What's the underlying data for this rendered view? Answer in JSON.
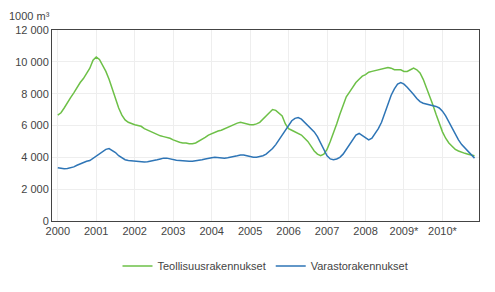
{
  "chart_data": {
    "type": "line",
    "ylabel": "1000 m³",
    "x": [
      2000.0,
      2000.0833333333333,
      2000.1666666666667,
      2000.25,
      2000.3333333333333,
      2000.4166666666667,
      2000.5,
      2000.5833333333333,
      2000.6666666666667,
      2000.75,
      2000.8333333333333,
      2000.9166666666667,
      2001.0,
      2001.0833333333333,
      2001.1666666666667,
      2001.25,
      2001.3333333333333,
      2001.4166666666667,
      2001.5,
      2001.5833333333333,
      2001.6666666666667,
      2001.75,
      2001.8333333333333,
      2001.9166666666667,
      2002.0,
      2002.0833333333333,
      2002.1666666666667,
      2002.25,
      2002.3333333333333,
      2002.4166666666667,
      2002.5,
      2002.5833333333333,
      2002.6666666666667,
      2002.75,
      2002.8333333333333,
      2002.9166666666667,
      2003.0,
      2003.0833333333333,
      2003.1666666666667,
      2003.25,
      2003.3333333333333,
      2003.4166666666667,
      2003.5,
      2003.5833333333333,
      2003.6666666666667,
      2003.75,
      2003.8333333333333,
      2003.9166666666667,
      2004.0,
      2004.0833333333333,
      2004.1666666666667,
      2004.25,
      2004.3333333333333,
      2004.4166666666667,
      2004.5,
      2004.5833333333333,
      2004.6666666666667,
      2004.75,
      2004.8333333333333,
      2004.9166666666667,
      2005.0,
      2005.0833333333333,
      2005.1666666666667,
      2005.25,
      2005.3333333333333,
      2005.4166666666667,
      2005.5,
      2005.5833333333333,
      2005.6666666666667,
      2005.75,
      2005.8333333333333,
      2005.9166666666667,
      2006.0,
      2006.0833333333333,
      2006.1666666666667,
      2006.25,
      2006.3333333333333,
      2006.4166666666667,
      2006.5,
      2006.5833333333333,
      2006.6666666666667,
      2006.75,
      2006.8333333333333,
      2006.9166666666667,
      2007.0,
      2007.0833333333333,
      2007.1666666666667,
      2007.25,
      2007.3333333333333,
      2007.4166666666667,
      2007.5,
      2007.5833333333333,
      2007.6666666666667,
      2007.75,
      2007.8333333333333,
      2007.9166666666667,
      2008.0,
      2008.0833333333333,
      2008.1666666666667,
      2008.25,
      2008.3333333333333,
      2008.4166666666667,
      2008.5,
      2008.5833333333333,
      2008.6666666666667,
      2008.75,
      2008.8333333333333,
      2008.9166666666667,
      2009.0,
      2009.0833333333333,
      2009.1666666666667,
      2009.25,
      2009.3333333333333,
      2009.4166666666667,
      2009.5,
      2009.5833333333333,
      2009.6666666666667,
      2009.75,
      2009.8333333333333,
      2009.9166666666667,
      2010.0,
      2010.0833333333333,
      2010.1666666666667,
      2010.25,
      2010.3333333333333,
      2010.4166666666667,
      2010.5,
      2010.5833333333333,
      2010.6666666666667,
      2010.75,
      2010.8333333333333
    ],
    "series": [
      {
        "name": "Teollisuusrakennukset",
        "color": "#6DC047",
        "values": [
          6650,
          6800,
          7100,
          7450,
          7750,
          8050,
          8400,
          8700,
          8950,
          9300,
          9600,
          10100,
          10300,
          10150,
          9800,
          9400,
          8900,
          8300,
          7700,
          7100,
          6650,
          6350,
          6200,
          6100,
          6050,
          6000,
          5950,
          5800,
          5700,
          5600,
          5500,
          5400,
          5350,
          5300,
          5250,
          5200,
          5100,
          5000,
          4950,
          4900,
          4900,
          4850,
          4850,
          4900,
          5000,
          5100,
          5250,
          5400,
          5500,
          5600,
          5650,
          5700,
          5800,
          5900,
          6000,
          6100,
          6150,
          6200,
          6150,
          6100,
          6050,
          6050,
          6100,
          6200,
          6400,
          6600,
          6800,
          7000,
          6950,
          6800,
          6600,
          6100,
          5800,
          5700,
          5600,
          5500,
          5400,
          5200,
          5000,
          4700,
          4400,
          4200,
          4100,
          4200,
          4500,
          5000,
          5500,
          6100,
          6700,
          7300,
          7800,
          8100,
          8400,
          8700,
          8900,
          9100,
          9200,
          9350,
          9400,
          9450,
          9500,
          9550,
          9600,
          9650,
          9600,
          9500,
          9500,
          9500,
          9400,
          9400,
          9500,
          9600,
          9500,
          9300,
          8900,
          8400,
          7900,
          7300,
          6700,
          6100,
          5600,
          5200,
          4900,
          4700,
          4500,
          4400,
          4300,
          4250,
          4200,
          4150,
          4100
        ]
      },
      {
        "name": "Varastorakennukset",
        "color": "#2E75B6",
        "values": [
          3350,
          3300,
          3280,
          3300,
          3350,
          3400,
          3500,
          3600,
          3700,
          3750,
          3800,
          3950,
          4100,
          4250,
          4400,
          4500,
          4550,
          4450,
          4300,
          4100,
          3950,
          3850,
          3800,
          3780,
          3760,
          3720,
          3700,
          3700,
          3720,
          3750,
          3800,
          3850,
          3900,
          3950,
          3950,
          3900,
          3850,
          3820,
          3800,
          3780,
          3750,
          3750,
          3760,
          3780,
          3800,
          3850,
          3900,
          3950,
          3980,
          4000,
          3980,
          3960,
          3950,
          3970,
          4000,
          4050,
          4100,
          4150,
          4150,
          4100,
          4050,
          4000,
          4000,
          4050,
          4100,
          4200,
          4350,
          4550,
          4800,
          5100,
          5400,
          5700,
          6000,
          6300,
          6450,
          6500,
          6400,
          6200,
          6000,
          5800,
          5600,
          5300,
          4900,
          4400,
          4100,
          3900,
          3850,
          3900,
          4000,
          4200,
          4500,
          4800,
          5100,
          5400,
          5500,
          5350,
          5200,
          5100,
          5200,
          5500,
          5800,
          6200,
          6800,
          7400,
          7900,
          8300,
          8600,
          8700,
          8600,
          8400,
          8200,
          7950,
          7700,
          7500,
          7400,
          7350,
          7300,
          7250,
          7200,
          7100,
          6900,
          6600,
          6200,
          5800,
          5400,
          5100,
          4800,
          4600,
          4400,
          4200,
          3950
        ]
      }
    ],
    "xlim": [
      1999.85,
      2010.95
    ],
    "xticks": [
      2000,
      2001,
      2002,
      2003,
      2004,
      2005,
      2006,
      2007,
      2008,
      {
        "value": 2009,
        "label": "2009*"
      },
      {
        "value": 2010,
        "label": "2010*"
      }
    ],
    "ylim": [
      0,
      12000
    ],
    "yticks": [
      0,
      {
        "value": 2000,
        "label": "2 000"
      },
      {
        "value": 4000,
        "label": "4 000"
      },
      {
        "value": 6000,
        "label": "6 000"
      },
      {
        "value": 8000,
        "label": "8 000"
      },
      {
        "value": 10000,
        "label": "10 000"
      },
      {
        "value": 12000,
        "label": "12 000"
      }
    ],
    "grid": true,
    "legend": "bottom"
  }
}
